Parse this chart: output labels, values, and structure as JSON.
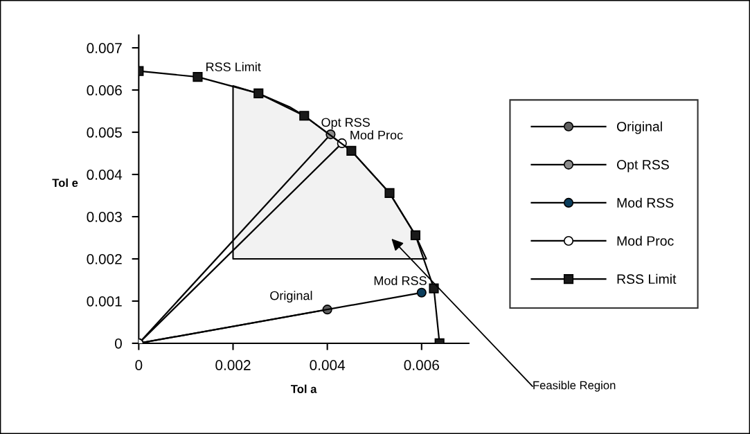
{
  "chart_data": {
    "type": "line",
    "xlabel": "Tol a",
    "ylabel": "Tol e",
    "xlim": [
      0,
      0.007
    ],
    "ylim": [
      0,
      0.0073
    ],
    "xticks": [
      0,
      0.002,
      0.004,
      0.006
    ],
    "yticks": [
      0,
      0.001,
      0.002,
      0.003,
      0.004,
      0.005,
      0.006,
      0.007
    ],
    "grid": false,
    "legend": "right",
    "series": [
      {
        "type": "area",
        "color": "#f2f2f2",
        "x": [
          0.002,
          0.002,
          0.00254,
          0.0032,
          0.00351,
          0.00451,
          0.00532,
          0.00587,
          0.0061
        ],
        "values": [
          0.002,
          0.0061,
          0.00592,
          0.0056,
          0.00539,
          0.00456,
          0.00356,
          0.00256,
          0.002
        ]
      },
      {
        "name": "Original",
        "color": "#606060",
        "marker": "circle",
        "x": [
          0,
          0.004
        ],
        "values": [
          0,
          0.0008
        ]
      },
      {
        "name": "Opt RSS",
        "color": "#8c8c8c",
        "marker": "circle",
        "x": [
          0,
          0.00407
        ],
        "values": [
          0,
          0.00495
        ]
      },
      {
        "name": "Mod RSS",
        "color": "#0b3d5c",
        "marker": "circle",
        "x": [
          0,
          0.006
        ],
        "values": [
          0,
          0.0012
        ]
      },
      {
        "name": "Mod Proc",
        "color": "#ffffff",
        "marker": "circle",
        "x": [
          0,
          0.00431
        ],
        "values": [
          0,
          0.00474
        ]
      },
      {
        "name": "RSS Limit",
        "color": "#1a1a1a",
        "marker": "square",
        "x": [
          0,
          0.00125,
          0.00254,
          0.00351,
          0.00451,
          0.00532,
          0.00587,
          0.00626,
          0.00638
        ],
        "values": [
          0.00645,
          0.00631,
          0.00592,
          0.00539,
          0.00456,
          0.00356,
          0.00256,
          0.0013,
          0
        ]
      }
    ],
    "annotations": [
      "Feasible Region"
    ]
  }
}
